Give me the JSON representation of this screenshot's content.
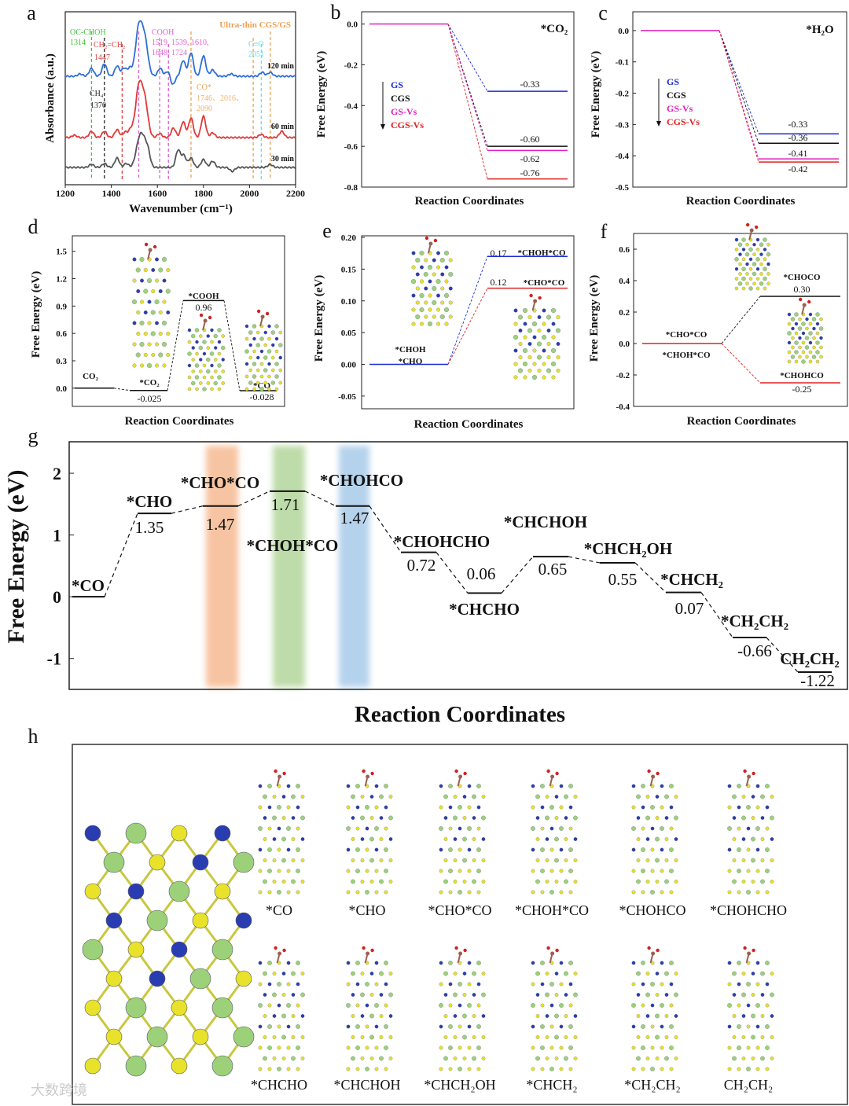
{
  "panel_letters": [
    "a",
    "b",
    "c",
    "d",
    "e",
    "f",
    "g",
    "h"
  ],
  "watermark": "大数跨境",
  "chart_data": [
    {
      "id": "a",
      "type": "line",
      "title": "Ultra-thin CGS/GS",
      "xlabel": "Wavenumber (cm⁻¹)",
      "ylabel": "Absorbance (a.u.)",
      "xlim": [
        1200,
        2200
      ],
      "xticks": [
        "1200",
        "1400",
        "1600",
        "1800",
        "2000",
        "2200"
      ],
      "series": [
        {
          "name": "120 min",
          "color": "#2f6fd6",
          "peaks": [
            [
              1265,
              0.03
            ],
            [
              1314,
              0.1
            ],
            [
              1370,
              0.16
            ],
            [
              1425,
              0.13
            ],
            [
              1455,
              0.1
            ],
            [
              1480,
              0.1
            ],
            [
              1519,
              0.6
            ],
            [
              1545,
              0.45
            ],
            [
              1612,
              0.1
            ],
            [
              1648,
              0.08
            ],
            [
              1665,
              -0.12
            ],
            [
              1712,
              0.2
            ],
            [
              1746,
              0.3
            ],
            [
              1800,
              0.26
            ],
            [
              1840,
              0.08
            ],
            [
              1920,
              0.03
            ],
            [
              2055,
              0.05
            ],
            [
              2090,
              0.05
            ]
          ]
        },
        {
          "name": "60 min",
          "color": "#e03a3a",
          "peaks": [
            [
              1240,
              0.03
            ],
            [
              1314,
              0.08
            ],
            [
              1370,
              0.08
            ],
            [
              1425,
              0.1
            ],
            [
              1460,
              0.07
            ],
            [
              1485,
              0.1
            ],
            [
              1519,
              0.62
            ],
            [
              1545,
              0.45
            ],
            [
              1610,
              0.05
            ],
            [
              1670,
              0.12
            ],
            [
              1712,
              0.2
            ],
            [
              1746,
              0.25
            ],
            [
              1800,
              0.27
            ],
            [
              1840,
              0.06
            ],
            [
              2050,
              0.04
            ],
            [
              2140,
              0.08
            ]
          ]
        },
        {
          "name": "30 min",
          "color": "#555555",
          "peaks": [
            [
              1314,
              0.04
            ],
            [
              1370,
              0.05
            ],
            [
              1425,
              0.12
            ],
            [
              1465,
              0.05
            ],
            [
              1519,
              0.28
            ],
            [
              1540,
              0.3
            ],
            [
              1560,
              0.15
            ],
            [
              1690,
              0.22
            ],
            [
              1715,
              0.15
            ],
            [
              1746,
              0.12
            ],
            [
              1800,
              0.1
            ],
            [
              1840,
              0.08
            ],
            [
              1925,
              -0.05
            ],
            [
              2090,
              0.04
            ]
          ]
        }
      ],
      "markers": [
        {
          "x": 1314,
          "color": "#3cc43c"
        },
        {
          "x": 1370,
          "color": "#222222"
        },
        {
          "x": 1447,
          "color": "#e03a3a"
        },
        {
          "x": 1519,
          "color": "#e060d0"
        },
        {
          "x": 1610,
          "color": "#e060d0"
        },
        {
          "x": 1648,
          "color": "#e060d0"
        },
        {
          "x": 1746,
          "color": "#f0a050"
        },
        {
          "x": 2016,
          "color": "#f0a050"
        },
        {
          "x": 2051,
          "color": "#66e0e0"
        },
        {
          "x": 2090,
          "color": "#f0a050"
        }
      ],
      "annotations": [
        {
          "text": "OC-CHOH",
          "color": "#3cc43c"
        },
        {
          "text": "1314",
          "color": "#3cc43c"
        },
        {
          "text": "CH₂=CH₂",
          "color": "#e03a3a"
        },
        {
          "text": "1447",
          "color": "#e03a3a"
        },
        {
          "text": "COOH",
          "color": "#e060d0"
        },
        {
          "text": "1519, 1539, 1610,",
          "color": "#e060d0"
        },
        {
          "text": "1648, 1724",
          "color": "#e060d0"
        },
        {
          "text": "C≡O",
          "color": "#66e0e0"
        },
        {
          "text": "2051",
          "color": "#66e0e0"
        },
        {
          "text": "CH₄",
          "color": "#222222"
        },
        {
          "text": "1370",
          "color": "#222222"
        },
        {
          "text": "CO*",
          "color": "#f0a050"
        },
        {
          "text": "1746、2016、",
          "color": "#f0b070"
        },
        {
          "text": "2090",
          "color": "#f0b070"
        }
      ]
    },
    {
      "id": "b",
      "type": "energy-diagram",
      "title": "*CO₂",
      "xlabel": "Reaction Coordinates",
      "ylabel": "Free Energy (eV)",
      "ylim": [
        -0.8,
        0.06
      ],
      "yticks": [
        0.0,
        -0.2,
        -0.4,
        -0.6,
        -0.8
      ],
      "tick_labels": [
        "0.0",
        "-0.2",
        "-0.4",
        "-0.6",
        "-0.8"
      ],
      "legend": [
        {
          "name": "GS",
          "color": "#1a2bd6"
        },
        {
          "name": "CGS",
          "color": "#111111"
        },
        {
          "name": "GS-Vs",
          "color": "#e020c0"
        },
        {
          "name": "CGS-Vs",
          "color": "#e02020"
        }
      ],
      "levels": [
        {
          "value": 0.0,
          "step": 0,
          "color": "#e020c0"
        },
        {
          "value": -0.33,
          "step": 1,
          "color": "#1a2bd6",
          "value_label": "-0.33"
        },
        {
          "value": -0.6,
          "step": 1,
          "color": "#111111",
          "value_label": "-0.60"
        },
        {
          "value": -0.62,
          "step": 1,
          "color": "#e020c0",
          "value_label": "-0.62"
        },
        {
          "value": -0.76,
          "step": 1,
          "color": "#e02020",
          "value_label": "-0.76"
        }
      ],
      "connections": [
        [
          0,
          1,
          "#1a2bd6"
        ],
        [
          0,
          2,
          "#111111"
        ],
        [
          0,
          3,
          "#e020c0"
        ],
        [
          0,
          4,
          "#e02020"
        ]
      ]
    },
    {
      "id": "c",
      "type": "energy-diagram",
      "title": "*H₂O",
      "xlabel": "Reaction Coordinates",
      "ylabel": "Free Energy (eV)",
      "ylim": [
        -0.5,
        0.06
      ],
      "yticks": [
        0.0,
        -0.1,
        -0.2,
        -0.3,
        -0.4,
        -0.5
      ],
      "tick_labels": [
        "0.0",
        "-0.1",
        "-0.2",
        "-0.3",
        "-0.4",
        "-0.5"
      ],
      "legend": [
        {
          "name": "GS",
          "color": "#1a2bd6"
        },
        {
          "name": "CGS",
          "color": "#111111"
        },
        {
          "name": "GS-Vs",
          "color": "#e020c0"
        },
        {
          "name": "CGS-Vs",
          "color": "#e02020"
        }
      ],
      "levels": [
        {
          "value": 0.0,
          "step": 0,
          "color": "#e020c0"
        },
        {
          "value": -0.33,
          "step": 1,
          "color": "#1a2bd6",
          "value_label": "-0.33"
        },
        {
          "value": -0.36,
          "step": 1,
          "color": "#111111",
          "value_label": "-0.36"
        },
        {
          "value": -0.41,
          "step": 1,
          "color": "#e020c0",
          "value_label": "-0.41"
        },
        {
          "value": -0.42,
          "step": 1,
          "color": "#e02020",
          "value_label": "-0.42"
        }
      ],
      "connections": [
        [
          0,
          1,
          "#1a2bd6"
        ],
        [
          0,
          2,
          "#111111"
        ],
        [
          0,
          3,
          "#e020c0"
        ],
        [
          0,
          4,
          "#e02020"
        ]
      ]
    },
    {
      "id": "d",
      "type": "energy-diagram",
      "xlabel": "Reaction Coordinates",
      "ylabel": "Free Energy (eV)",
      "ylim": [
        -0.2,
        1.67
      ],
      "yticks": [
        0.0,
        0.3,
        0.6,
        0.9,
        1.2,
        1.5
      ],
      "tick_labels": [
        "0.0",
        "0.3",
        "0.6",
        "0.9",
        "1.2",
        "1.5"
      ],
      "levels": [
        {
          "value": 0.0,
          "step": 0,
          "color": "#111111",
          "name": "CO₂"
        },
        {
          "value": -0.025,
          "step": 1,
          "color": "#111111",
          "name": "*CO₂",
          "value_label": "-0.025"
        },
        {
          "value": 0.96,
          "step": 2,
          "color": "#111111",
          "name": "*COOH",
          "value_label": "0.96"
        },
        {
          "value": -0.028,
          "step": 3,
          "color": "#111111",
          "name": "*CO",
          "value_label": "-0.028"
        }
      ],
      "connections": [
        [
          0,
          1,
          "#111111"
        ],
        [
          1,
          2,
          "#111111"
        ],
        [
          2,
          3,
          "#111111"
        ]
      ]
    },
    {
      "id": "e",
      "type": "energy-diagram",
      "xlabel": "Reaction Coordinates",
      "ylabel": "Free Energy (eV)",
      "ylim": [
        -0.07,
        0.2025
      ],
      "yticks": [
        0.2,
        0.15,
        0.1,
        0.05,
        0.0,
        -0.05
      ],
      "tick_labels": [
        "0.20",
        "0.15",
        "0.10",
        "0.05",
        "0.00",
        "-0.05"
      ],
      "levels": [
        {
          "value": 0.0,
          "step": 0,
          "color": "#1a2bd6",
          "name": "*CHOH",
          "name2": "*CHO"
        },
        {
          "value": 0.17,
          "step": 1,
          "color": "#1a2bd6",
          "name": "*CHOH*CO",
          "value_label": "0.17"
        },
        {
          "value": 0.12,
          "step": 1,
          "color": "#e02020",
          "name": "*CHO*CO",
          "value_label": "0.12"
        }
      ],
      "connections": [
        [
          0,
          1,
          "#1a2bd6"
        ],
        [
          0,
          2,
          "#e02020"
        ]
      ]
    },
    {
      "id": "f",
      "type": "energy-diagram",
      "xlabel": "Reaction Coordinates",
      "ylabel": "Free Energy (eV)",
      "ylim": [
        -0.4,
        0.7
      ],
      "yticks": [
        0.6,
        0.4,
        0.2,
        0.0,
        -0.2,
        -0.4
      ],
      "tick_labels": [
        "0.6",
        "0.4",
        "0.2",
        "0.0",
        "-0.2",
        "-0.4"
      ],
      "levels": [
        {
          "value": 0.0,
          "step": 0,
          "color": "#e02020",
          "name": "*CHO*CO",
          "name2": "*CHOH*CO"
        },
        {
          "value": 0.3,
          "step": 1,
          "color": "#111111",
          "name": "*CHOCO",
          "value_label": "0.30"
        },
        {
          "value": -0.25,
          "step": 1,
          "color": "#e02020",
          "name": "*CHOHCO",
          "value_label": "-0.25"
        }
      ],
      "connections": [
        [
          0,
          1,
          "#111111"
        ],
        [
          0,
          2,
          "#e02020"
        ]
      ]
    },
    {
      "id": "g",
      "type": "energy-diagram",
      "xlabel": "Reaction Coordinates",
      "ylabel": "Free Energy (eV)",
      "ylim": [
        -1.5,
        2.51
      ],
      "yticks": [
        2,
        1,
        0,
        -1
      ],
      "tick_labels": [
        "2",
        "1",
        "0",
        "-1"
      ],
      "highlights": [
        {
          "step": 2,
          "color": "#f4b183"
        },
        {
          "step": 3,
          "color": "#a9d18e"
        },
        {
          "step": 4,
          "color": "#9dc3e6"
        }
      ],
      "levels": [
        {
          "value": 0.0,
          "step": 0,
          "name": "*CO"
        },
        {
          "value": 1.35,
          "step": 1,
          "name": "*CHO",
          "value_label": "1.35"
        },
        {
          "value": 1.47,
          "step": 2,
          "name": "*CHO*CO",
          "value_label": "1.47"
        },
        {
          "value": 1.71,
          "step": 3,
          "name": "*CHOH*CO",
          "value_label": "1.71"
        },
        {
          "value": 1.47,
          "step": 4,
          "name": "*CHOHCO",
          "value_label": "1.47"
        },
        {
          "value": 0.72,
          "step": 5,
          "name": "*CHOHCHO",
          "value_label": "0.72"
        },
        {
          "value": 0.06,
          "step": 6,
          "name": "*CHCHO",
          "value_label": "0.06"
        },
        {
          "value": 0.65,
          "step": 7,
          "name": "*CHCHOH",
          "value_label": "0.65"
        },
        {
          "value": 0.55,
          "step": 8,
          "name": "*CHCH₂OH",
          "value_label": "0.55"
        },
        {
          "value": 0.07,
          "step": 9,
          "name": "*CHCH₂",
          "value_label": "0.07"
        },
        {
          "value": -0.66,
          "step": 10,
          "name": "*CH₂CH₂",
          "value_label": "-0.66"
        },
        {
          "value": -1.22,
          "step": 11,
          "name": "CH₂CH₂",
          "value_label": "-1.22"
        }
      ]
    }
  ],
  "structures": {
    "row1": [
      "*CO",
      "*CHO",
      "*CHO*CO",
      "*CHOH*CO",
      "*CHOHCO",
      "*CHOHCHO"
    ],
    "row2": [
      "*CHCHO",
      "*CHCHOH",
      "*CHCH₂OH",
      "*CHCH₂",
      "*CH₂CH₂",
      "CH₂CH₂"
    ]
  }
}
